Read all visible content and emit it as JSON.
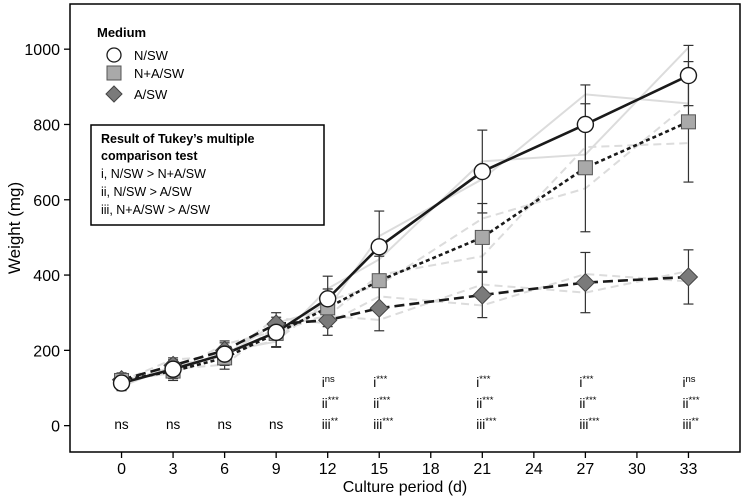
{
  "chart_data": {
    "type": "line",
    "xlabel": "Culture period (d)",
    "ylabel": "Weight (mg)",
    "x_ticks": [
      0,
      3,
      6,
      9,
      12,
      15,
      18,
      21,
      24,
      27,
      30,
      33
    ],
    "y_ticks": [
      0,
      200,
      400,
      600,
      800,
      1000
    ],
    "xlim": [
      -3,
      36
    ],
    "ylim": [
      -70,
      1120
    ],
    "grid": false,
    "legend": {
      "title": "Medium",
      "placement": "top-left",
      "entries": [
        "N/SW",
        "N+A/SW",
        "A/SW"
      ]
    },
    "series": [
      {
        "name": "N/SW",
        "marker": "circle",
        "line_style": "solid",
        "color": "#1a1a1a",
        "fill": "#ffffff",
        "x": [
          0,
          3,
          6,
          9,
          12,
          15,
          21,
          27,
          33
        ],
        "y": [
          113,
          150,
          190,
          248,
          337,
          475,
          675,
          800,
          930
        ],
        "err": [
          20,
          25,
          30,
          40,
          60,
          95,
          110,
          105,
          80
        ]
      },
      {
        "name": "N+A/SW",
        "marker": "square",
        "line_style": "dotted",
        "color": "#1a1a1a",
        "fill": "#a9a9a9",
        "x": [
          0,
          3,
          6,
          9,
          12,
          15,
          21,
          27,
          33
        ],
        "y": [
          120,
          145,
          180,
          245,
          313,
          385,
          500,
          685,
          807
        ],
        "err": [
          20,
          25,
          30,
          35,
          50,
          65,
          90,
          170,
          160
        ]
      },
      {
        "name": "A/SW",
        "marker": "diamond",
        "line_style": "dashed",
        "color": "#1a1a1a",
        "fill": "#7a7a7a",
        "x": [
          0,
          3,
          6,
          9,
          12,
          15,
          21,
          27,
          33
        ],
        "y": [
          122,
          160,
          200,
          270,
          280,
          312,
          347,
          380,
          395
        ],
        "err": [
          15,
          20,
          25,
          30,
          40,
          60,
          60,
          80,
          72
        ]
      }
    ],
    "annotation_box": {
      "title": "Result of Tukey’s multiple comparison test",
      "title_lines": [
        "Result of Tukey’s multiple",
        "comparison test"
      ],
      "lines": [
        "i, N/SW > N+A/SW",
        "ii, N/SW > A/SW",
        "iii, N+A/SW > A/SW"
      ]
    },
    "significance": [
      {
        "x": 0,
        "labels": [
          "ns"
        ]
      },
      {
        "x": 3,
        "labels": [
          "ns"
        ]
      },
      {
        "x": 6,
        "labels": [
          "ns"
        ]
      },
      {
        "x": 9,
        "labels": [
          "ns"
        ]
      },
      {
        "x": 12,
        "labels": [
          [
            "i",
            "ns"
          ],
          [
            "ii",
            "***"
          ],
          [
            "iii",
            "**"
          ]
        ]
      },
      {
        "x": 15,
        "labels": [
          [
            "i",
            "***"
          ],
          [
            "ii",
            "***"
          ],
          [
            "iii",
            "***"
          ]
        ]
      },
      {
        "x": 21,
        "labels": [
          [
            "i",
            "***"
          ],
          [
            "ii",
            "***"
          ],
          [
            "iii",
            "***"
          ]
        ]
      },
      {
        "x": 27,
        "labels": [
          [
            "i",
            "***"
          ],
          [
            "ii",
            "***"
          ],
          [
            "iii",
            "***"
          ]
        ]
      },
      {
        "x": 33,
        "labels": [
          [
            "i",
            "ns"
          ],
          [
            "ii",
            "***"
          ],
          [
            "iii",
            "**"
          ]
        ]
      }
    ]
  }
}
